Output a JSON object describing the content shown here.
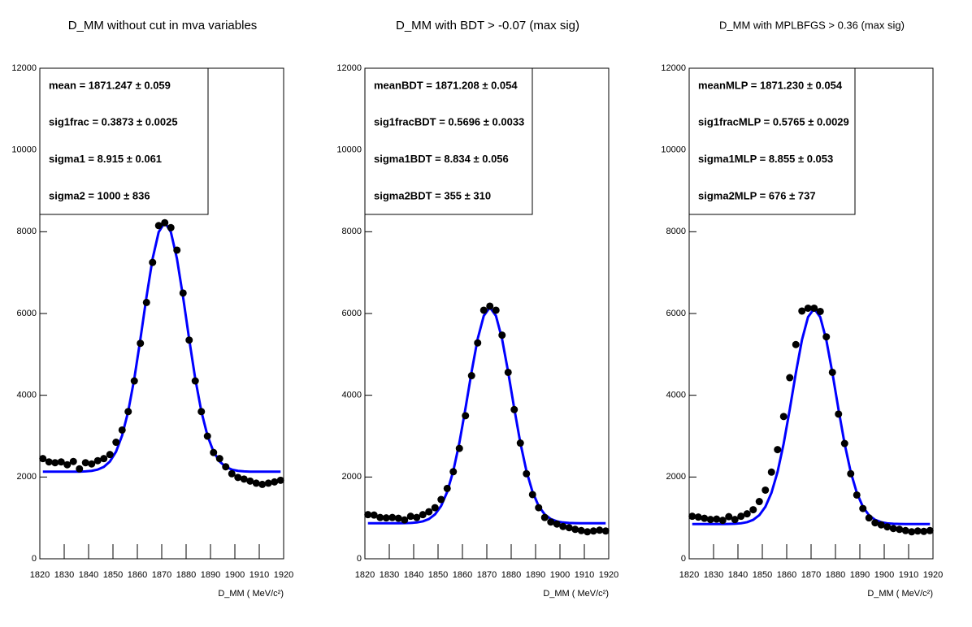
{
  "chart_data": [
    {
      "type": "scatter",
      "title": "D_MM without cut in mva variables",
      "x_label": "D_MM ( MeV/c²)",
      "annotations": [
        "mean =  1871.247 ± 0.059",
        "sig1frac =  0.3873 ± 0.0025",
        "sigma1 =  8.915 ± 0.061",
        "sigma2 =  1000 ± 836"
      ],
      "x": [
        1821.25,
        1823.75,
        1826.25,
        1828.75,
        1831.25,
        1833.75,
        1836.25,
        1838.75,
        1841.25,
        1843.75,
        1846.25,
        1848.75,
        1851.25,
        1853.75,
        1856.25,
        1858.75,
        1861.25,
        1863.75,
        1866.25,
        1868.75,
        1871.25,
        1873.75,
        1876.25,
        1878.75,
        1881.25,
        1883.75,
        1886.25,
        1888.75,
        1891.25,
        1893.75,
        1896.25,
        1898.75,
        1901.25,
        1903.75,
        1906.25,
        1908.75,
        1911.25,
        1913.75,
        1916.25,
        1918.75
      ],
      "values": [
        2450,
        2370,
        2350,
        2370,
        2300,
        2380,
        2200,
        2350,
        2320,
        2400,
        2450,
        2550,
        2850,
        3150,
        3600,
        4350,
        5270,
        6270,
        7250,
        8150,
        8220,
        8100,
        7550,
        6500,
        5350,
        4350,
        3600,
        3000,
        2600,
        2450,
        2250,
        2080,
        1990,
        1950,
        1900,
        1850,
        1820,
        1850,
        1880,
        1920
      ],
      "color": "#000000",
      "fit_values": [
        2130,
        2130,
        2130,
        2130,
        2130,
        2130,
        2132,
        2138,
        2151,
        2182,
        2248,
        2380,
        2618,
        3015,
        3606,
        4405,
        5375,
        6406,
        7339,
        7992,
        8230,
        7992,
        7339,
        6406,
        5375,
        4405,
        3606,
        3015,
        2618,
        2380,
        2248,
        2182,
        2151,
        2138,
        2132,
        2130,
        2130,
        2130,
        2130,
        2130
      ],
      "fit_color": "#0000ff",
      "xlim": [
        1820,
        1920
      ],
      "xticks": [
        1820,
        1830,
        1840,
        1850,
        1860,
        1870,
        1880,
        1890,
        1900,
        1910,
        1920
      ],
      "ylim": [
        0,
        12000
      ],
      "yticks": [
        0,
        2000,
        4000,
        6000,
        8000,
        10000,
        12000
      ]
    },
    {
      "type": "scatter",
      "title": "D_MM with BDT > -0.07 (max sig)",
      "x_label": "D_MM ( MeV/c²)",
      "annotations": [
        "meanBDT =  1871.208 ± 0.054",
        "sig1fracBDT =  0.5696 ± 0.0033",
        "sigma1BDT =  8.834 ± 0.056",
        "sigma2BDT =  355 ± 310"
      ],
      "x": [
        1821.25,
        1823.75,
        1826.25,
        1828.75,
        1831.25,
        1833.75,
        1836.25,
        1838.75,
        1841.25,
        1843.75,
        1846.25,
        1848.75,
        1851.25,
        1853.75,
        1856.25,
        1858.75,
        1861.25,
        1863.75,
        1866.25,
        1868.75,
        1871.25,
        1873.75,
        1876.25,
        1878.75,
        1881.25,
        1883.75,
        1886.25,
        1888.75,
        1891.25,
        1893.75,
        1896.25,
        1898.75,
        1901.25,
        1903.75,
        1906.25,
        1908.75,
        1911.25,
        1913.75,
        1916.25,
        1918.75
      ],
      "values": [
        1080,
        1070,
        1010,
        1000,
        1010,
        990,
        950,
        1040,
        1010,
        1080,
        1150,
        1250,
        1450,
        1720,
        2130,
        2700,
        3500,
        4480,
        5280,
        6080,
        6180,
        6080,
        5470,
        4560,
        3650,
        2830,
        2080,
        1570,
        1250,
        1010,
        900,
        850,
        790,
        760,
        720,
        690,
        660,
        680,
        700,
        680
      ],
      "color": "#000000",
      "fit_values": [
        870,
        870,
        870,
        870,
        870,
        870,
        872,
        877,
        888,
        915,
        972,
        1086,
        1292,
        1636,
        2148,
        2839,
        3679,
        4571,
        5379,
        5944,
        6150,
        5944,
        5379,
        4571,
        3679,
        2839,
        2148,
        1636,
        1292,
        1086,
        972,
        915,
        888,
        877,
        872,
        870,
        870,
        870,
        870,
        870
      ],
      "fit_color": "#0000ff",
      "xlim": [
        1820,
        1920
      ],
      "xticks": [
        1820,
        1830,
        1840,
        1850,
        1860,
        1870,
        1880,
        1890,
        1900,
        1910,
        1920
      ],
      "ylim": [
        0,
        12000
      ],
      "yticks": [
        0,
        2000,
        4000,
        6000,
        8000,
        10000,
        12000
      ]
    },
    {
      "type": "scatter",
      "title": "D_MM with MPLBFGS > 0.36 (max sig)",
      "x_label": "D_MM ( MeV/c²)",
      "annotations": [
        "meanMLP =  1871.230 ± 0.054",
        "sig1fracMLP =  0.5765 ± 0.0029",
        "sigma1MLP =  8.855 ± 0.053",
        "sigma2MLP =  676 ± 737"
      ],
      "x": [
        1821.25,
        1823.75,
        1826.25,
        1828.75,
        1831.25,
        1833.75,
        1836.25,
        1838.75,
        1841.25,
        1843.75,
        1846.25,
        1848.75,
        1851.25,
        1853.75,
        1856.25,
        1858.75,
        1861.25,
        1863.75,
        1866.25,
        1868.75,
        1871.25,
        1873.75,
        1876.25,
        1878.75,
        1881.25,
        1883.75,
        1886.25,
        1888.75,
        1891.25,
        1893.75,
        1896.25,
        1898.75,
        1901.25,
        1903.75,
        1906.25,
        1908.75,
        1911.25,
        1913.75,
        1916.25,
        1918.75
      ],
      "values": [
        1040,
        1020,
        990,
        960,
        970,
        940,
        1030,
        960,
        1040,
        1100,
        1200,
        1400,
        1680,
        2120,
        2670,
        3480,
        4430,
        5240,
        6060,
        6130,
        6130,
        6050,
        5430,
        4560,
        3540,
        2820,
        2080,
        1560,
        1230,
        1000,
        880,
        830,
        780,
        740,
        720,
        690,
        660,
        680,
        670,
        690
      ],
      "color": "#000000",
      "fit_values": [
        850,
        850,
        850,
        850,
        850,
        850,
        852,
        857,
        868,
        895,
        952,
        1066,
        1272,
        1614,
        2125,
        2816,
        3654,
        4544,
        5351,
        5914,
        6120,
        5914,
        5351,
        4544,
        3654,
        2816,
        2125,
        1614,
        1272,
        1066,
        952,
        895,
        868,
        857,
        852,
        850,
        850,
        850,
        850,
        850
      ],
      "fit_color": "#0000ff",
      "xlim": [
        1820,
        1920
      ],
      "xticks": [
        1820,
        1830,
        1840,
        1850,
        1860,
        1870,
        1880,
        1890,
        1900,
        1910,
        1920
      ],
      "ylim": [
        0,
        12000
      ],
      "yticks": [
        0,
        2000,
        4000,
        6000,
        8000,
        10000,
        12000
      ]
    }
  ]
}
